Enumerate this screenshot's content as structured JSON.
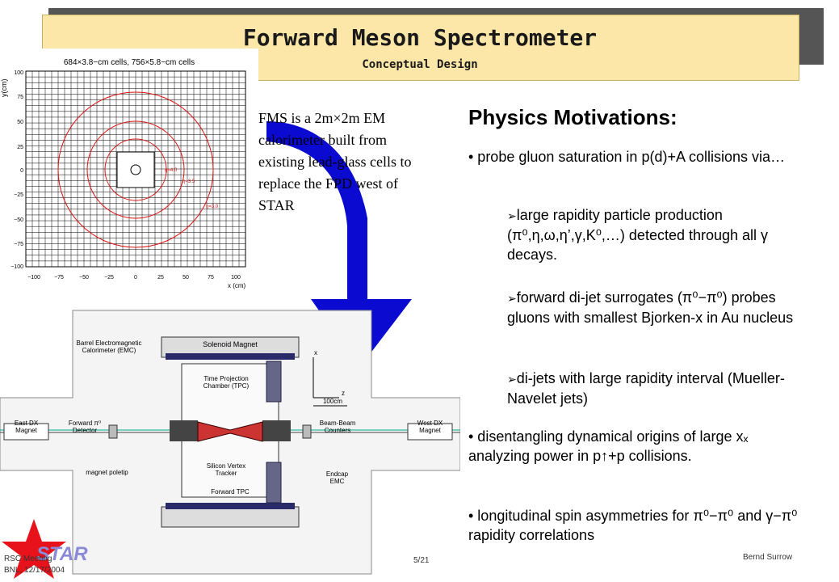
{
  "title": "Forward Meson Spectrometer",
  "subtitle": "Conceptual Design",
  "plot": {
    "header": "684×3.8−cm cells, 756×5.8−cm cells",
    "ylabel": "y(cm)",
    "xlabel": "x (cm)",
    "ticks": [
      "−100",
      "−75",
      "−50",
      "−25",
      "0",
      "25",
      "50",
      "75",
      "100"
    ],
    "yticks": [
      "100",
      "75",
      "50",
      "25",
      "0",
      "−25",
      "−50",
      "−75",
      "−100"
    ],
    "eta_labels": [
      "η=4.0",
      "η=3.5",
      "η=3.0"
    ]
  },
  "fms_text": "FMS is a 2m×2m EM calorimeter built from existing lead-glass cells to replace the FPD west of STAR",
  "detector": {
    "labels": {
      "solenoid": "Solenoid Magnet",
      "barrel": "Barrel Electromagnetic Calorimeter (EMC)",
      "tpc": "Time Projection Chamber (TPC)",
      "east_dx": "East DX Magnet",
      "forward_pi0": "Forward π⁰ Detector",
      "beam_beam": "Beam-Beam Counters",
      "west_dx": "West DX Magnet",
      "svt": "Silicon Vertex Tracker",
      "ftpc": "Forward TPC",
      "magnet_poletip": "magnet poletip",
      "endcap": "Endcap EMC",
      "scale": "100cm",
      "axis_x": "x",
      "axis_z": "z"
    }
  },
  "physics": {
    "heading": "Physics Motivations:",
    "b1": "• probe gluon saturation in p(d)+A collisions via…",
    "s1": "large rapidity particle production (π⁰,η,ω,η’,γ,K⁰,…) detected through all γ decays.",
    "s2": "forward di-jet surrogates (π⁰−π⁰) probes gluons with smallest Bjorken-x in Au nucleus",
    "s3": "di-jets with large rapidity interval (Mueller-Navelet jets)",
    "b2": "• disentangling dynamical origins of large xₓ analyzing power in p↑+p collisions.",
    "b3": "• longitudinal spin asymmetries for π⁰−π⁰ and γ−π⁰ rapidity correlations"
  },
  "footer": {
    "left1": "RSC Meeting",
    "left2": "BNL, 12/17/2004",
    "page": "5/21",
    "author": "Bernd Surrow",
    "logo": "STAR"
  },
  "colors": {
    "banner": "#fde7a8",
    "arrow": "#0a0ad0",
    "star_red": "#e8121a",
    "circle_red": "#d11"
  }
}
